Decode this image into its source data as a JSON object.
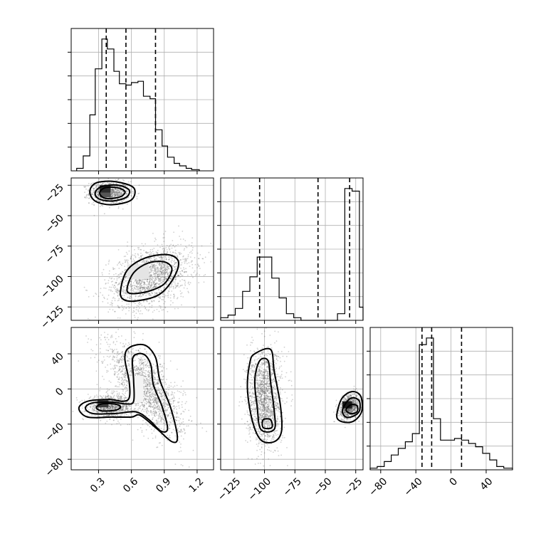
{
  "chart_data": {
    "type": "corner",
    "parameters": [
      {
        "ticks": [
          0.3,
          0.6,
          0.9,
          1.2
        ],
        "tick_labels": [
          "0.3",
          "0.6",
          "0.9",
          "1.2"
        ],
        "range": [
          0.05,
          1.35
        ],
        "quantiles": [
          0.37,
          0.55,
          0.82
        ],
        "histogram": {
          "edges": [
            0.1,
            0.16,
            0.22,
            0.27,
            0.33,
            0.38,
            0.44,
            0.49,
            0.55,
            0.6,
            0.66,
            0.71,
            0.77,
            0.82,
            0.88,
            0.93,
            0.99,
            1.04,
            1.1,
            1.15,
            1.22
          ],
          "counts": [
            2,
            12,
            45,
            82,
            106,
            98,
            80,
            70,
            69,
            71,
            72,
            60,
            58,
            33,
            20,
            11,
            6,
            4,
            2,
            1
          ]
        }
      },
      {
        "ticks": [
          -125,
          -100,
          -75,
          -50,
          -25
        ],
        "tick_labels": [
          "−125",
          "−100",
          "−75",
          "−50",
          "−25"
        ],
        "range": [
          -136,
          -19
        ],
        "quantiles": [
          -104,
          -56,
          -30
        ],
        "histogram": {
          "edges": [
            -136,
            -130,
            -124,
            -118,
            -112,
            -106,
            -100,
            -94,
            -88,
            -82,
            -76,
            -70,
            -64,
            -58,
            -52,
            -46,
            -40,
            -34,
            -28,
            -22,
            -19
          ],
          "counts": [
            2,
            4,
            9,
            22,
            33,
            48,
            48,
            32,
            17,
            5,
            2,
            0,
            0,
            0,
            0,
            0,
            5,
            100,
            98,
            10
          ]
        }
      },
      {
        "ticks": [
          -80,
          -40,
          0,
          40
        ],
        "tick_labels": [
          "−80",
          "−40",
          "0",
          "40"
        ],
        "range": [
          -92,
          70
        ],
        "quantiles": [
          -33,
          -22,
          12
        ],
        "histogram": {
          "edges": [
            -92,
            -84,
            -76,
            -68,
            -60,
            -52,
            -44,
            -36,
            -28,
            -20,
            -12,
            -4,
            4,
            12,
            20,
            28,
            36,
            44,
            52,
            60,
            70
          ],
          "counts": [
            1,
            2,
            5,
            9,
            13,
            17,
            22,
            76,
            80,
            31,
            18,
            18,
            19,
            18,
            16,
            14,
            10,
            6,
            2,
            1
          ]
        }
      }
    ],
    "panels_2d": [
      {
        "x_param": 0,
        "y_param": 1,
        "clusters": [
          {
            "mx": 0.4,
            "my": -31,
            "sx": 0.09,
            "sy": 4.5,
            "rho": 0.0,
            "n": 900
          },
          {
            "mx": 0.78,
            "my": -100,
            "sx": 0.19,
            "sy": 13,
            "rho": 0.35,
            "n": 1700
          }
        ],
        "contours": [
          [
            [
              0.22,
              -30
            ],
            [
              0.28,
              -23
            ],
            [
              0.45,
              -22
            ],
            [
              0.62,
              -27
            ],
            [
              0.6,
              -37
            ],
            [
              0.42,
              -41
            ],
            [
              0.27,
              -38
            ]
          ],
          [
            [
              0.27,
              -31
            ],
            [
              0.33,
              -26
            ],
            [
              0.48,
              -25
            ],
            [
              0.58,
              -29
            ],
            [
              0.55,
              -35
            ],
            [
              0.42,
              -38
            ],
            [
              0.3,
              -36
            ]
          ],
          [
            [
              0.31,
              -31
            ],
            [
              0.36,
              -27
            ],
            [
              0.47,
              -27
            ],
            [
              0.54,
              -30
            ],
            [
              0.51,
              -34
            ],
            [
              0.41,
              -36
            ],
            [
              0.34,
              -35
            ]
          ],
          [
            [
              0.5,
              -112
            ],
            [
              0.56,
              -95
            ],
            [
              0.72,
              -85
            ],
            [
              0.93,
              -82
            ],
            [
              1.03,
              -88
            ],
            [
              0.98,
              -102
            ],
            [
              0.85,
              -115
            ],
            [
              0.65,
              -120
            ],
            [
              0.53,
              -119
            ]
          ],
          [
            [
              0.56,
              -110
            ],
            [
              0.62,
              -97
            ],
            [
              0.75,
              -89
            ],
            [
              0.9,
              -88
            ],
            [
              0.97,
              -94
            ],
            [
              0.9,
              -106
            ],
            [
              0.76,
              -112
            ],
            [
              0.6,
              -114
            ]
          ]
        ],
        "dense_cells": [
          {
            "x": 0.36,
            "y": -29,
            "w": 0.1,
            "h": 8,
            "shade": "#2b2b2b"
          },
          {
            "x": 0.36,
            "y": -33,
            "w": 0.1,
            "h": 4,
            "shade": "#555555"
          },
          {
            "x": 0.66,
            "y": -96,
            "w": 0.2,
            "h": 12,
            "shade": "#e4e4e4"
          }
        ]
      },
      {
        "x_param": 0,
        "y_param": 2,
        "clusters": [
          {
            "mx": 0.4,
            "my": -20,
            "sx": 0.1,
            "sy": 6,
            "rho": 0.0,
            "n": 900
          },
          {
            "mx": 0.73,
            "my": 0,
            "sx": 0.17,
            "sy": 26,
            "rho": -0.65,
            "n": 1700
          }
        ],
        "contours": [
          [
            [
              0.12,
              -22
            ],
            [
              0.2,
              -14
            ],
            [
              0.4,
              -12
            ],
            [
              0.52,
              -14
            ],
            [
              0.58,
              -10
            ],
            [
              0.58,
              8
            ],
            [
              0.54,
              35
            ],
            [
              0.58,
              47
            ],
            [
              0.72,
              50
            ],
            [
              0.82,
              36
            ],
            [
              0.86,
              10
            ],
            [
              0.96,
              -22
            ],
            [
              1.02,
              -55
            ],
            [
              0.97,
              -60
            ],
            [
              0.83,
              -45
            ],
            [
              0.68,
              -30
            ],
            [
              0.6,
              -32
            ],
            [
              0.42,
              -32
            ],
            [
              0.2,
              -32
            ]
          ],
          [
            [
              0.18,
              -22
            ],
            [
              0.24,
              -16
            ],
            [
              0.42,
              -15
            ],
            [
              0.55,
              -17
            ],
            [
              0.62,
              -14
            ],
            [
              0.62,
              10
            ],
            [
              0.61,
              34
            ],
            [
              0.66,
              40
            ],
            [
              0.73,
              38
            ],
            [
              0.78,
              26
            ],
            [
              0.8,
              5
            ],
            [
              0.88,
              -20
            ],
            [
              0.93,
              -45
            ],
            [
              0.87,
              -48
            ],
            [
              0.76,
              -35
            ],
            [
              0.64,
              -26
            ],
            [
              0.45,
              -28
            ],
            [
              0.25,
              -28
            ]
          ],
          [
            [
              0.28,
              -21
            ],
            [
              0.33,
              -17
            ],
            [
              0.44,
              -17
            ],
            [
              0.5,
              -20
            ],
            [
              0.46,
              -24
            ],
            [
              0.33,
              -25
            ]
          ]
        ],
        "dense_cells": [
          {
            "x": 0.34,
            "y": -17,
            "w": 0.1,
            "h": 8,
            "shade": "#3a3a3a"
          },
          {
            "x": 0.64,
            "y": 0,
            "w": 0.14,
            "h": 30,
            "shade": "#f4f4f4"
          }
        ]
      },
      {
        "x_param": 1,
        "y_param": 2,
        "clusters": [
          {
            "mx": -100,
            "my": -10,
            "sx": 7,
            "sy": 27,
            "rho": 0.0,
            "n": 1700
          },
          {
            "mx": -30,
            "my": -20,
            "sx": 4,
            "sy": 7,
            "rho": 0.3,
            "n": 900
          }
        ],
        "contours": [
          [
            [
              -108,
              40
            ],
            [
              -95,
              45
            ],
            [
              -92,
              20
            ],
            [
              -87,
              -18
            ],
            [
              -86,
              -48
            ],
            [
              -92,
              -60
            ],
            [
              -103,
              -58
            ],
            [
              -110,
              -36
            ],
            [
              -114,
              0
            ],
            [
              -112,
              30
            ]
          ],
          [
            [
              -104,
              32
            ],
            [
              -97,
              32
            ],
            [
              -95,
              8
            ],
            [
              -92,
              -25
            ],
            [
              -92,
              -46
            ],
            [
              -103,
              -46
            ],
            [
              -106,
              -20
            ],
            [
              -108,
              10
            ]
          ],
          [
            [
              -101,
              -35
            ],
            [
              -95,
              -35
            ],
            [
              -94,
              -44
            ],
            [
              -101,
              -44
            ]
          ],
          [
            [
              -40,
              -25
            ],
            [
              -36,
              -10
            ],
            [
              -28,
              -3
            ],
            [
              -21,
              -8
            ],
            [
              -20,
              -25
            ],
            [
              -26,
              -36
            ],
            [
              -34,
              -38
            ],
            [
              -40,
              -34
            ]
          ],
          [
            [
              -36,
              -25
            ],
            [
              -32,
              -14
            ],
            [
              -27,
              -10
            ],
            [
              -22,
              -14
            ],
            [
              -22,
              -25
            ],
            [
              -27,
              -31
            ],
            [
              -33,
              -32
            ]
          ],
          [
            [
              -33,
              -24
            ],
            [
              -29,
              -18
            ],
            [
              -24,
              -19
            ],
            [
              -24,
              -26
            ],
            [
              -29,
              -28
            ]
          ]
        ],
        "dense_cells": [
          {
            "x": -32,
            "y": -18,
            "w": 8,
            "h": 8,
            "shade": "#1a1a1a"
          }
        ]
      }
    ]
  }
}
